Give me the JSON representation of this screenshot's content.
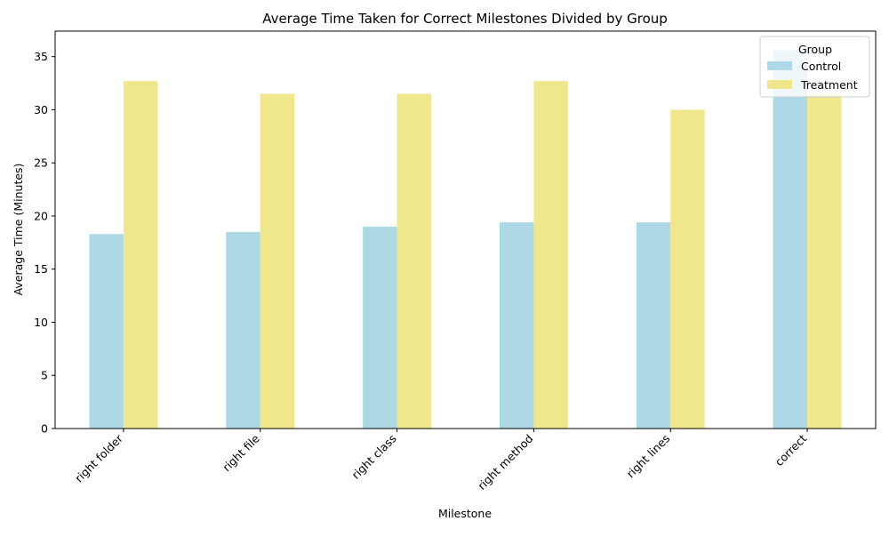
{
  "chart_data": {
    "type": "bar",
    "title": "Average Time Taken for Correct Milestones Divided by Group",
    "xlabel": "Milestone",
    "ylabel": "Average Time (Minutes)",
    "categories": [
      "right folder",
      "right file",
      "right class",
      "right method",
      "right lines",
      "correct"
    ],
    "series": [
      {
        "name": "Control",
        "color": "#add8e6",
        "values": [
          18.3,
          18.5,
          19.0,
          19.4,
          19.4,
          35.6
        ]
      },
      {
        "name": "Treatment",
        "color": "#f0e68c",
        "values": [
          32.7,
          31.5,
          31.5,
          32.7,
          30.0,
          31.5
        ]
      }
    ],
    "ylim": [
      0,
      37.4
    ],
    "yticks": [
      0,
      5,
      10,
      15,
      20,
      25,
      30,
      35
    ],
    "grid": false,
    "legend": {
      "title": "Group",
      "placement": "top-right"
    }
  }
}
